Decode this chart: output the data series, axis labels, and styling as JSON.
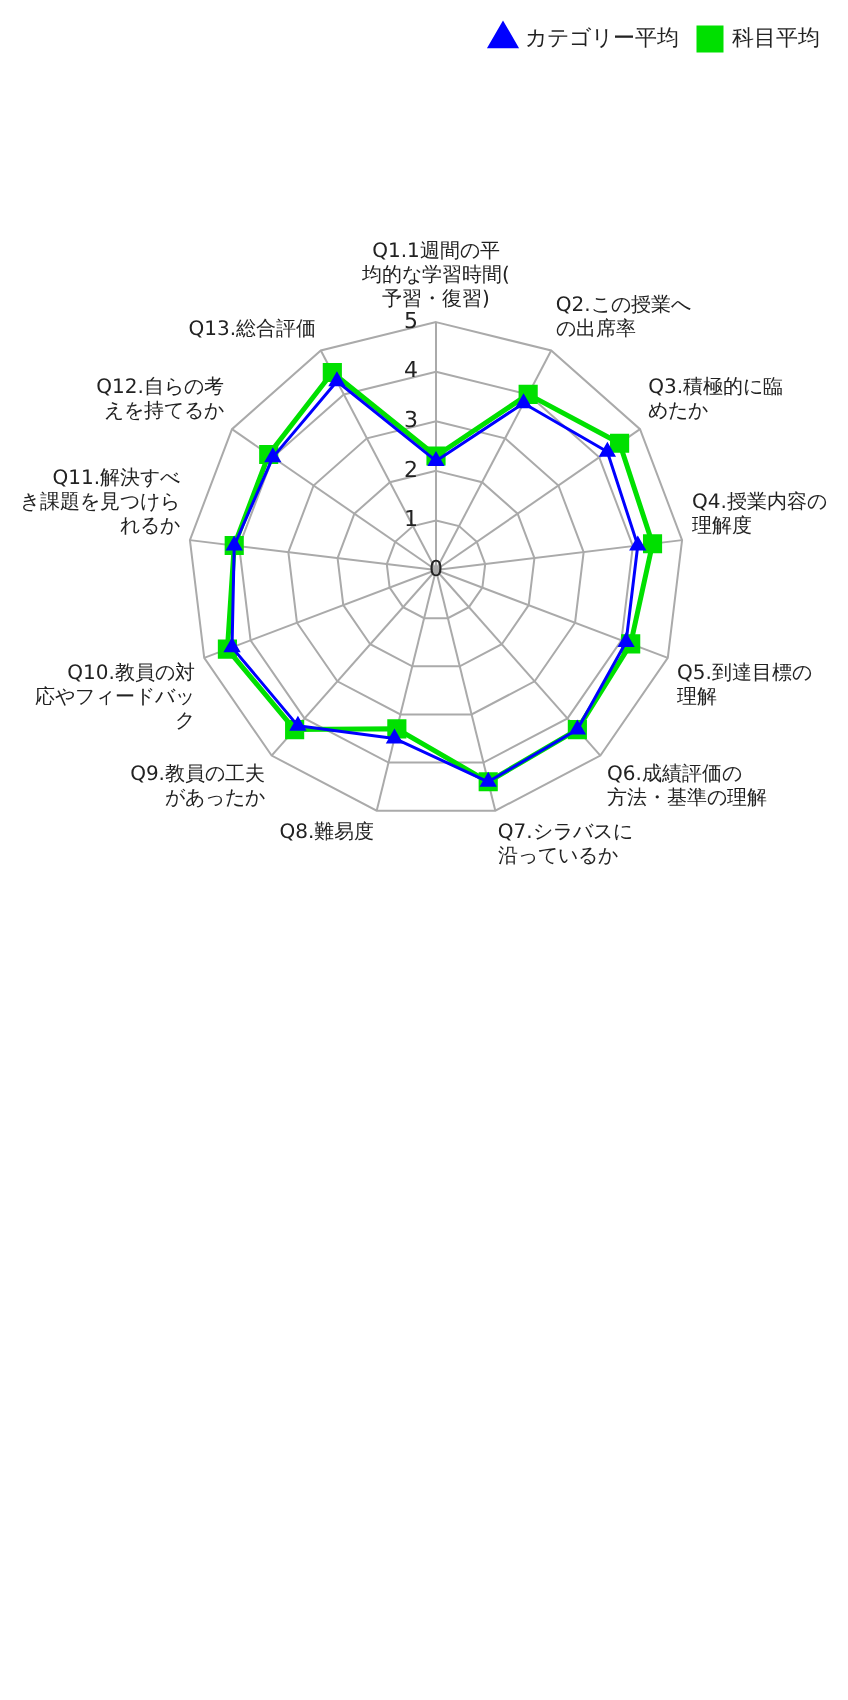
{
  "chart_data": {
    "type": "radar",
    "categories": [
      "Q1.1週間の平均的な学習時間(予習・復習)",
      "Q2.この授業への出席率",
      "Q3.積極的に臨めたか",
      "Q4.授業内容の理解度",
      "Q5.到達目標の理解",
      "Q6.成績評価の方法・基準の理解",
      "Q7.シラバスに沿っているか",
      "Q8.難易度",
      "Q9.教員の工夫があったか",
      "Q10.教員の対応やフィードバック",
      "Q11.解決すべき課題を見つけられるか",
      "Q12.自らの考えを持てるか",
      "Q13.総合評価"
    ],
    "series": [
      {
        "name": "科目平均",
        "color": "#00e000",
        "marker": "square",
        "values": [
          2.3,
          4.0,
          4.5,
          4.4,
          4.2,
          4.3,
          4.4,
          3.3,
          4.3,
          4.5,
          4.1,
          4.1,
          4.5
        ]
      },
      {
        "name": "カテゴリー平均",
        "color": "#0000ff",
        "marker": "triangle",
        "values": [
          2.2,
          3.8,
          4.2,
          4.1,
          4.1,
          4.3,
          4.4,
          3.5,
          4.2,
          4.4,
          4.1,
          4.0,
          4.3
        ]
      }
    ],
    "ylim": [
      0,
      5
    ],
    "yticks": [
      0,
      1,
      2,
      3,
      4,
      5
    ],
    "grid": true,
    "legend": "top right"
  }
}
